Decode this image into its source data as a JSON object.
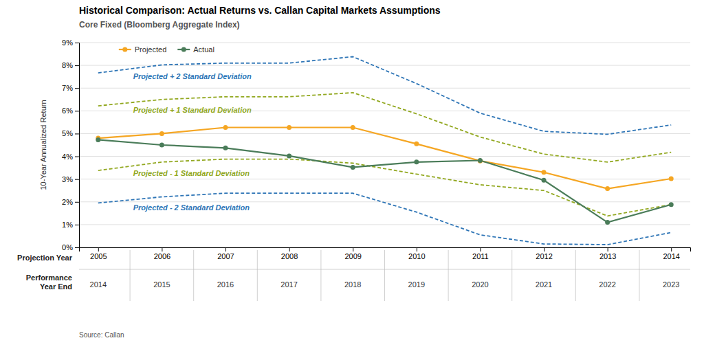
{
  "chart_data": {
    "type": "line",
    "title": "Historical Comparison: Actual Returns vs. Callan Capital Markets Assumptions",
    "subtitle": "Core Fixed (Bloomberg Aggregate Index)",
    "source": "Source: Callan",
    "y_label": "10-Year Annualized Return",
    "x_label": "Projection Year",
    "categories": [
      2005,
      2006,
      2007,
      2008,
      2009,
      2010,
      2011,
      2012,
      2013,
      2014
    ],
    "x2_label": "Performance\nYear End",
    "x2_categories": [
      2014,
      2015,
      2016,
      2017,
      2018,
      2019,
      2020,
      2021,
      2022,
      2023
    ],
    "series": [
      {
        "name": "Projected + 2 Standard Deviation",
        "color": "#2E75B6",
        "line_style": "dashed",
        "values": [
          7.67,
          8.02,
          8.1,
          8.1,
          8.38,
          7.2,
          5.9,
          5.1,
          4.97,
          5.38
        ]
      },
      {
        "name": "Projected + 1 Standard Deviation",
        "color": "#92A820",
        "line_style": "dashed",
        "values": [
          6.22,
          6.5,
          6.62,
          6.62,
          6.8,
          5.87,
          4.85,
          4.1,
          3.75,
          4.18
        ]
      },
      {
        "name": "Projected - 1 Standard Deviation",
        "color": "#92A820",
        "line_style": "dashed",
        "values": [
          3.38,
          3.75,
          3.88,
          3.88,
          3.7,
          3.22,
          2.75,
          2.5,
          1.38,
          1.88
        ]
      },
      {
        "name": "Projected - 2 Standard Deviation",
        "color": "#2E75B6",
        "line_style": "dashed",
        "values": [
          1.95,
          2.22,
          2.38,
          2.38,
          2.38,
          1.55,
          0.55,
          0.15,
          0.12,
          0.65
        ]
      },
      {
        "name": "Projected",
        "color": "#F5A623",
        "line_style": "solid",
        "marker": "circle",
        "values": [
          4.8,
          5.0,
          5.27,
          5.27,
          5.27,
          4.55,
          3.8,
          3.3,
          2.58,
          3.02
        ]
      },
      {
        "name": "Actual",
        "color": "#4A7C59",
        "line_style": "solid",
        "marker": "circle",
        "values": [
          4.73,
          4.5,
          4.37,
          4.02,
          3.52,
          3.75,
          3.82,
          2.95,
          1.1,
          1.88
        ]
      }
    ],
    "ylim": [
      0,
      9
    ],
    "yticks": [
      {
        "value": 0,
        "label": "0%"
      },
      {
        "value": 1,
        "label": "1%"
      },
      {
        "value": 2,
        "label": "2%"
      },
      {
        "value": 3,
        "label": "3%"
      },
      {
        "value": 4,
        "label": "4%"
      },
      {
        "value": 5,
        "label": "5%"
      },
      {
        "value": 6,
        "label": "6%"
      },
      {
        "value": 7,
        "label": "7%"
      },
      {
        "value": 8,
        "label": "8%"
      },
      {
        "value": 9,
        "label": "9%"
      }
    ],
    "grid": true,
    "legend": "upper left"
  }
}
